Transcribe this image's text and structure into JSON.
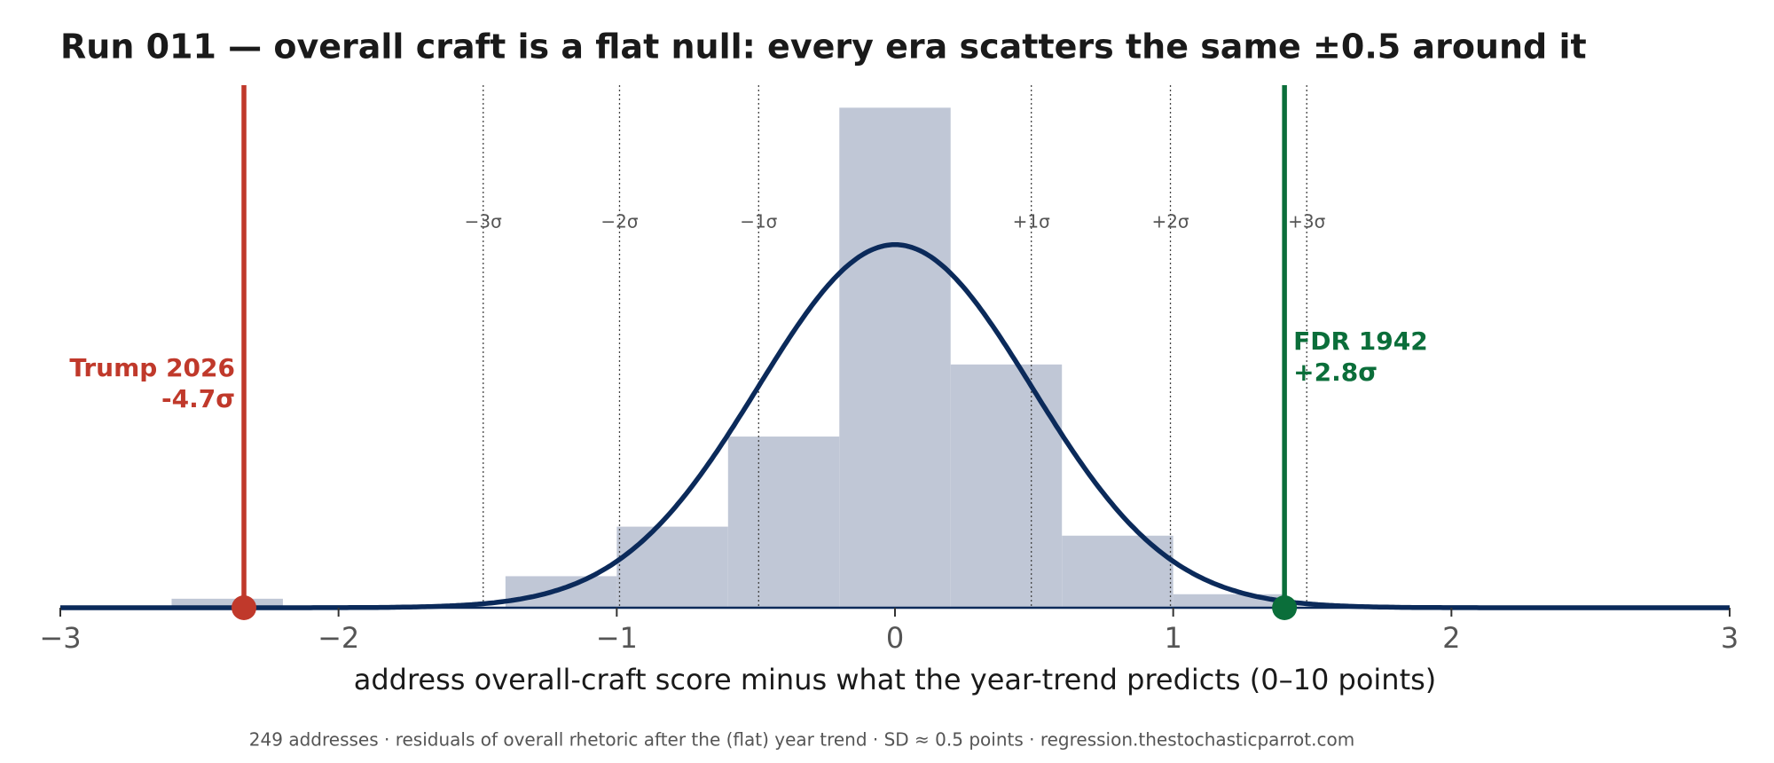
{
  "chart_data": {
    "type": "histogram",
    "title": "Run 011 — overall craft is a flat null: every era scatters the same ±0.5 around it",
    "xlabel": "address overall-craft score minus what the year-trend predicts  (0–10 points)",
    "footer": "249 addresses · residuals of overall rhetoric after the (flat) year trend · SD ≈ 0.5 points · regression.thestochasticparrot.com",
    "bins": [
      -2.6,
      -2.2,
      -1.8,
      -1.4,
      -1.0,
      -0.6,
      -0.2,
      0.2,
      0.6,
      1.0,
      1.4
    ],
    "counts": [
      2,
      0,
      0,
      7,
      18,
      38,
      111,
      54,
      16,
      3
    ],
    "color": "#c0c7d6",
    "curve": {
      "mean": 0,
      "sd": 0.493,
      "color": "#0b2a5a"
    },
    "xlim": [
      -3,
      3
    ],
    "ylim": [
      0,
      116
    ],
    "xticks": [
      {
        "value": -3,
        "label": "−3"
      },
      {
        "value": -2,
        "label": "−2"
      },
      {
        "value": -1,
        "label": "−1"
      },
      0,
      1,
      2,
      3
    ],
    "sigma_lines": [
      {
        "value": -1.48,
        "label": "−3σ"
      },
      {
        "value": -0.99,
        "label": "−2σ"
      },
      {
        "value": -0.49,
        "label": "−1σ"
      },
      {
        "value": 0.49,
        "label": "+1σ"
      },
      {
        "value": 0.99,
        "label": "+2σ"
      },
      {
        "value": 1.48,
        "label": "+3σ"
      }
    ],
    "markers": [
      {
        "name": "Trump 2026",
        "sigma_label": "-4.7σ",
        "x": -2.34,
        "color": "#c0392b",
        "side": "left"
      },
      {
        "name": "FDR 1942",
        "sigma_label": "+2.8σ",
        "x": 1.4,
        "color": "#0b6e3a",
        "side": "right"
      }
    ]
  }
}
